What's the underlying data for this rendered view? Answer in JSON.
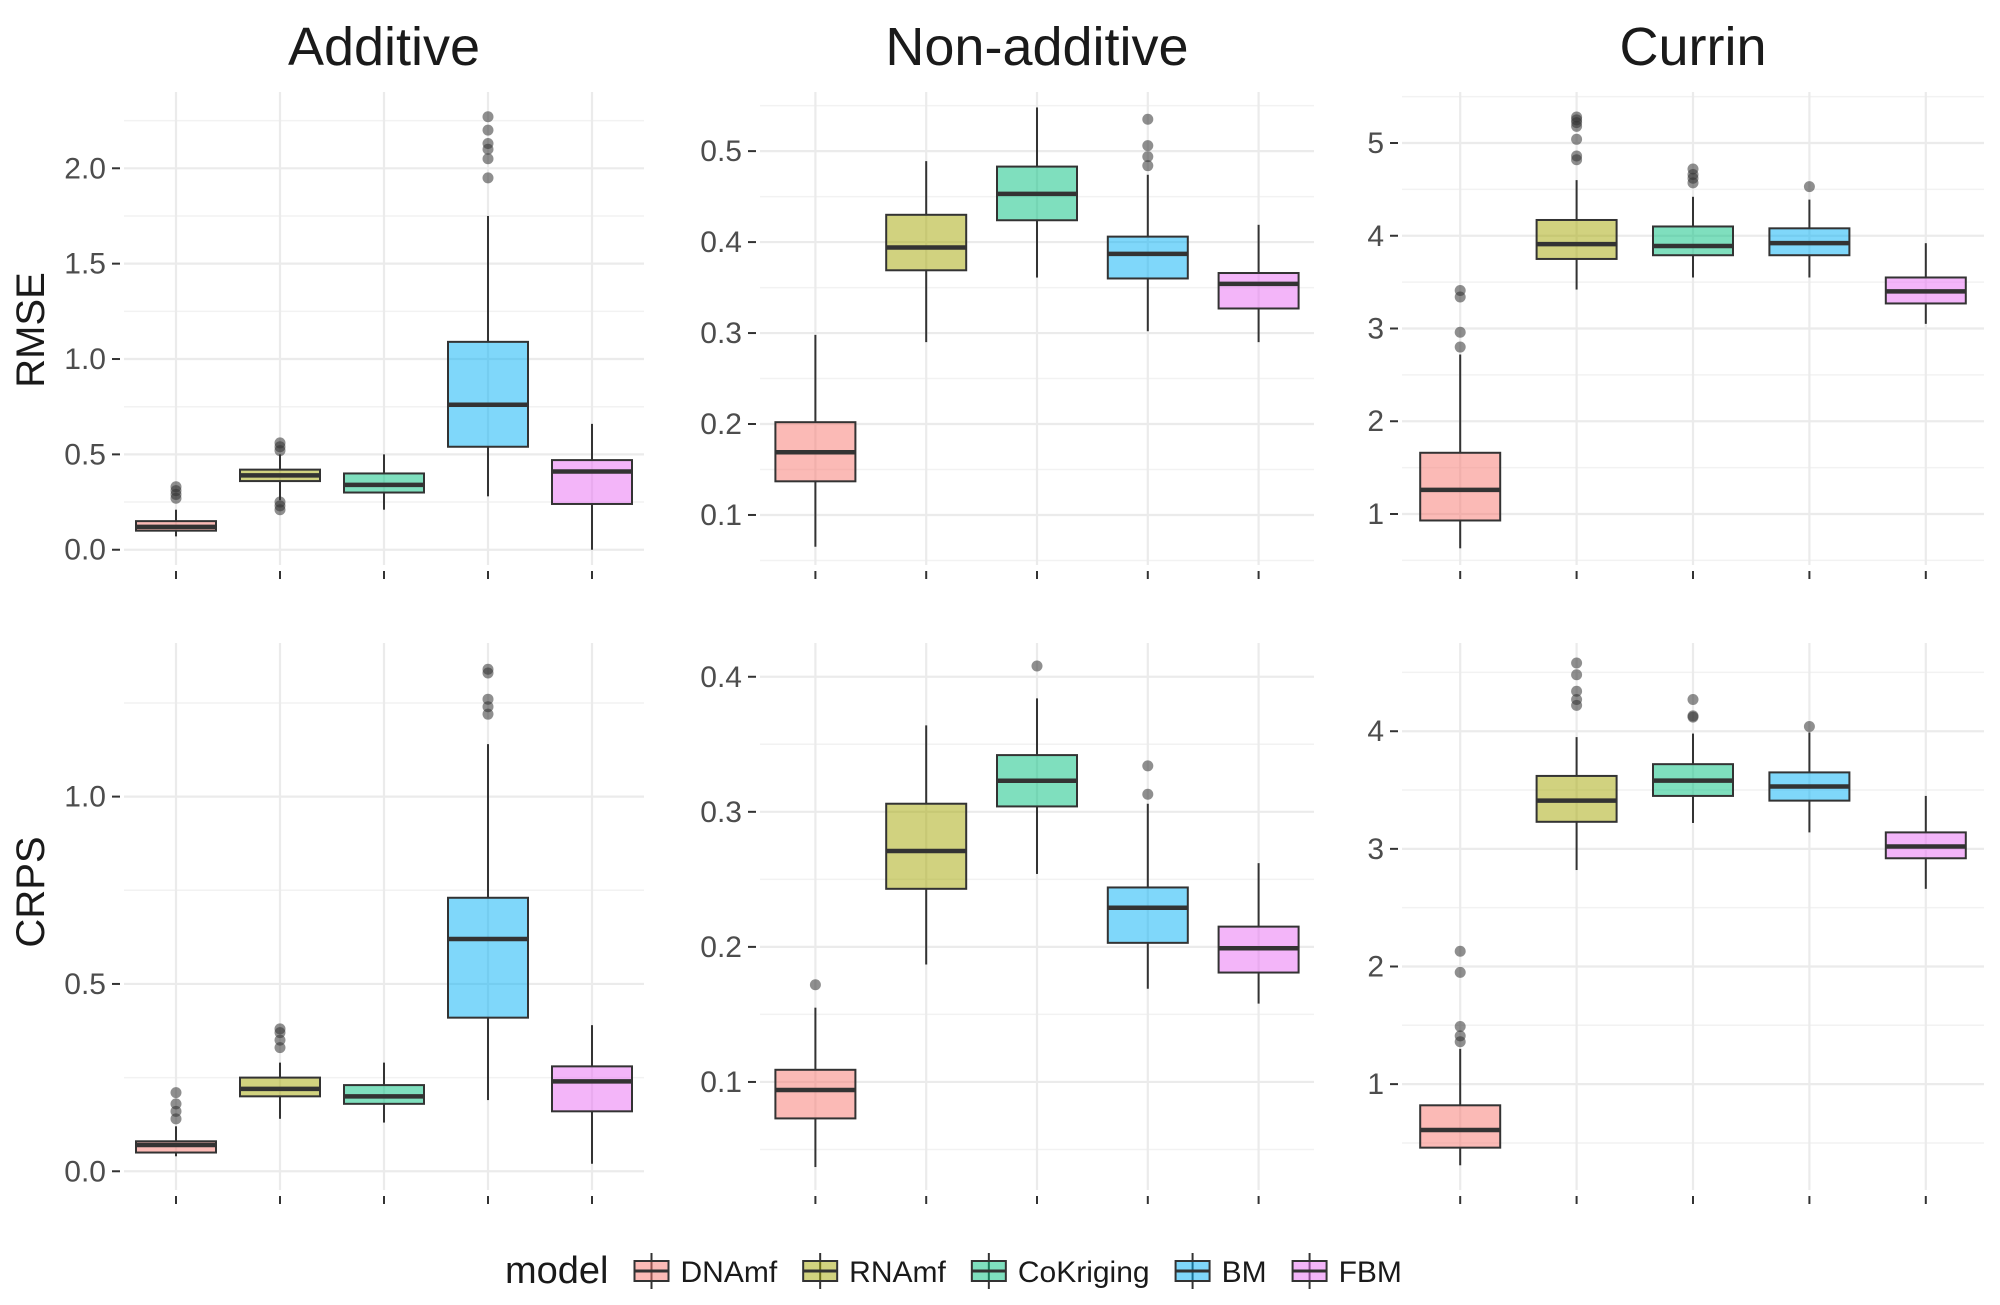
{
  "legend": {
    "title": "model",
    "items": [
      {
        "name": "DNAmf",
        "color": "#F8766D"
      },
      {
        "name": "RNAmf",
        "color": "#A3A500"
      },
      {
        "name": "CoKriging",
        "color": "#00BF7D"
      },
      {
        "name": "BM",
        "color": "#00B0F6"
      },
      {
        "name": "FBM",
        "color": "#E76BF3"
      }
    ]
  },
  "chart_data": [
    {
      "type": "box",
      "column": "Additive",
      "row": "RMSE",
      "yticks": [
        0.0,
        0.5,
        1.0,
        1.5,
        2.0
      ],
      "ytick_labels": [
        "0.0",
        "0.5",
        "1.0",
        "1.5",
        "2.0"
      ],
      "ylim": [
        -0.08,
        2.4
      ],
      "series": [
        {
          "name": "DNAmf",
          "whisker_low": 0.07,
          "q1": 0.1,
          "median": 0.12,
          "q3": 0.15,
          "whisker_high": 0.21,
          "outliers": [
            0.27,
            0.29,
            0.31,
            0.33
          ]
        },
        {
          "name": "RNAmf",
          "whisker_low": 0.26,
          "q1": 0.36,
          "median": 0.39,
          "q3": 0.42,
          "whisker_high": 0.5,
          "outliers": [
            0.21,
            0.23,
            0.25,
            0.52,
            0.54,
            0.56
          ]
        },
        {
          "name": "CoKriging",
          "whisker_low": 0.21,
          "q1": 0.3,
          "median": 0.34,
          "q3": 0.4,
          "whisker_high": 0.5,
          "outliers": []
        },
        {
          "name": "BM",
          "whisker_low": 0.28,
          "q1": 0.54,
          "median": 0.76,
          "q3": 1.09,
          "whisker_high": 1.75,
          "outliers": [
            1.95,
            2.05,
            2.1,
            2.13,
            2.2,
            2.27
          ]
        },
        {
          "name": "FBM",
          "whisker_low": 0.0,
          "q1": 0.24,
          "median": 0.41,
          "q3": 0.47,
          "whisker_high": 0.66,
          "outliers": []
        }
      ]
    },
    {
      "type": "box",
      "column": "Non-additive",
      "row": "RMSE",
      "yticks": [
        0.1,
        0.2,
        0.3,
        0.4,
        0.5
      ],
      "ytick_labels": [
        "0.1",
        "0.2",
        "0.3",
        "0.4",
        "0.5"
      ],
      "ylim": [
        0.045,
        0.565
      ],
      "series": [
        {
          "name": "DNAmf",
          "whisker_low": 0.065,
          "q1": 0.137,
          "median": 0.169,
          "q3": 0.202,
          "whisker_high": 0.298,
          "outliers": []
        },
        {
          "name": "RNAmf",
          "whisker_low": 0.29,
          "q1": 0.369,
          "median": 0.394,
          "q3": 0.43,
          "whisker_high": 0.489,
          "outliers": []
        },
        {
          "name": "CoKriging",
          "whisker_low": 0.361,
          "q1": 0.424,
          "median": 0.453,
          "q3": 0.483,
          "whisker_high": 0.548,
          "outliers": []
        },
        {
          "name": "BM",
          "whisker_low": 0.302,
          "q1": 0.36,
          "median": 0.387,
          "q3": 0.406,
          "whisker_high": 0.474,
          "outliers": [
            0.484,
            0.494,
            0.506,
            0.535
          ]
        },
        {
          "name": "FBM",
          "whisker_low": 0.29,
          "q1": 0.327,
          "median": 0.354,
          "q3": 0.366,
          "whisker_high": 0.419,
          "outliers": []
        }
      ]
    },
    {
      "type": "box",
      "column": "Currin",
      "row": "RMSE",
      "yticks": [
        1,
        2,
        3,
        4,
        5
      ],
      "ytick_labels": [
        "1",
        "2",
        "3",
        "4",
        "5"
      ],
      "ylim": [
        0.45,
        5.55
      ],
      "series": [
        {
          "name": "DNAmf",
          "whisker_low": 0.63,
          "q1": 0.93,
          "median": 1.26,
          "q3": 1.66,
          "whisker_high": 2.72,
          "outliers": [
            2.8,
            2.96,
            3.34,
            3.41
          ]
        },
        {
          "name": "RNAmf",
          "whisker_low": 3.42,
          "q1": 3.75,
          "median": 3.91,
          "q3": 4.17,
          "whisker_high": 4.6,
          "outliers": [
            4.82,
            4.86,
            5.04,
            5.18,
            5.22,
            5.25,
            5.28
          ]
        },
        {
          "name": "CoKriging",
          "whisker_low": 3.55,
          "q1": 3.79,
          "median": 3.89,
          "q3": 4.1,
          "whisker_high": 4.42,
          "outliers": [
            4.57,
            4.62,
            4.66,
            4.72
          ]
        },
        {
          "name": "BM",
          "whisker_low": 3.55,
          "q1": 3.79,
          "median": 3.92,
          "q3": 4.08,
          "whisker_high": 4.39,
          "outliers": [
            4.53
          ]
        },
        {
          "name": "FBM",
          "whisker_low": 3.05,
          "q1": 3.27,
          "median": 3.4,
          "q3": 3.55,
          "whisker_high": 3.92,
          "outliers": []
        }
      ]
    },
    {
      "type": "box",
      "column": "Additive",
      "row": "CRPS",
      "yticks": [
        0.0,
        0.5,
        1.0
      ],
      "ytick_labels": [
        "0.0",
        "0.5",
        "1.0"
      ],
      "ylim": [
        -0.05,
        1.41
      ],
      "series": [
        {
          "name": "DNAmf",
          "whisker_low": 0.04,
          "q1": 0.05,
          "median": 0.07,
          "q3": 0.08,
          "whisker_high": 0.12,
          "outliers": [
            0.14,
            0.16,
            0.18,
            0.21
          ]
        },
        {
          "name": "RNAmf",
          "whisker_low": 0.14,
          "q1": 0.2,
          "median": 0.22,
          "q3": 0.25,
          "whisker_high": 0.29,
          "outliers": [
            0.33,
            0.35,
            0.37,
            0.38
          ]
        },
        {
          "name": "CoKriging",
          "whisker_low": 0.13,
          "q1": 0.18,
          "median": 0.2,
          "q3": 0.23,
          "whisker_high": 0.29,
          "outliers": []
        },
        {
          "name": "BM",
          "whisker_low": 0.19,
          "q1": 0.41,
          "median": 0.62,
          "q3": 0.73,
          "whisker_high": 1.14,
          "outliers": [
            1.22,
            1.24,
            1.26,
            1.33,
            1.34
          ]
        },
        {
          "name": "FBM",
          "whisker_low": 0.02,
          "q1": 0.16,
          "median": 0.24,
          "q3": 0.28,
          "whisker_high": 0.39,
          "outliers": []
        }
      ]
    },
    {
      "type": "box",
      "column": "Non-additive",
      "row": "CRPS",
      "yticks": [
        0.1,
        0.2,
        0.3,
        0.4
      ],
      "ytick_labels": [
        "0.1",
        "0.2",
        "0.3",
        "0.4"
      ],
      "ylim": [
        0.02,
        0.425
      ],
      "series": [
        {
          "name": "DNAmf",
          "whisker_low": 0.037,
          "q1": 0.073,
          "median": 0.094,
          "q3": 0.109,
          "whisker_high": 0.155,
          "outliers": [
            0.172
          ]
        },
        {
          "name": "RNAmf",
          "whisker_low": 0.187,
          "q1": 0.243,
          "median": 0.271,
          "q3": 0.306,
          "whisker_high": 0.364,
          "outliers": []
        },
        {
          "name": "CoKriging",
          "whisker_low": 0.254,
          "q1": 0.304,
          "median": 0.323,
          "q3": 0.342,
          "whisker_high": 0.384,
          "outliers": [
            0.408
          ]
        },
        {
          "name": "BM",
          "whisker_low": 0.169,
          "q1": 0.203,
          "median": 0.229,
          "q3": 0.244,
          "whisker_high": 0.306,
          "outliers": [
            0.313,
            0.334
          ]
        },
        {
          "name": "FBM",
          "whisker_low": 0.158,
          "q1": 0.181,
          "median": 0.199,
          "q3": 0.215,
          "whisker_high": 0.262,
          "outliers": []
        }
      ]
    },
    {
      "type": "box",
      "column": "Currin",
      "row": "CRPS",
      "yticks": [
        1,
        2,
        3,
        4
      ],
      "ytick_labels": [
        "1",
        "2",
        "3",
        "4"
      ],
      "ylim": [
        0.1,
        4.75
      ],
      "series": [
        {
          "name": "DNAmf",
          "whisker_low": 0.31,
          "q1": 0.46,
          "median": 0.61,
          "q3": 0.82,
          "whisker_high": 1.3,
          "outliers": [
            1.36,
            1.41,
            1.49,
            1.95,
            2.13
          ]
        },
        {
          "name": "RNAmf",
          "whisker_low": 2.82,
          "q1": 3.23,
          "median": 3.41,
          "q3": 3.62,
          "whisker_high": 3.95,
          "outliers": [
            4.22,
            4.27,
            4.34,
            4.48,
            4.58
          ]
        },
        {
          "name": "CoKriging",
          "whisker_low": 3.22,
          "q1": 3.45,
          "median": 3.58,
          "q3": 3.72,
          "whisker_high": 3.98,
          "outliers": [
            4.12,
            4.13,
            4.27
          ]
        },
        {
          "name": "BM",
          "whisker_low": 3.14,
          "q1": 3.41,
          "median": 3.53,
          "q3": 3.65,
          "whisker_high": 3.99,
          "outliers": [
            4.04
          ]
        },
        {
          "name": "FBM",
          "whisker_low": 2.66,
          "q1": 2.92,
          "median": 3.02,
          "q3": 3.14,
          "whisker_high": 3.45,
          "outliers": []
        }
      ]
    }
  ]
}
